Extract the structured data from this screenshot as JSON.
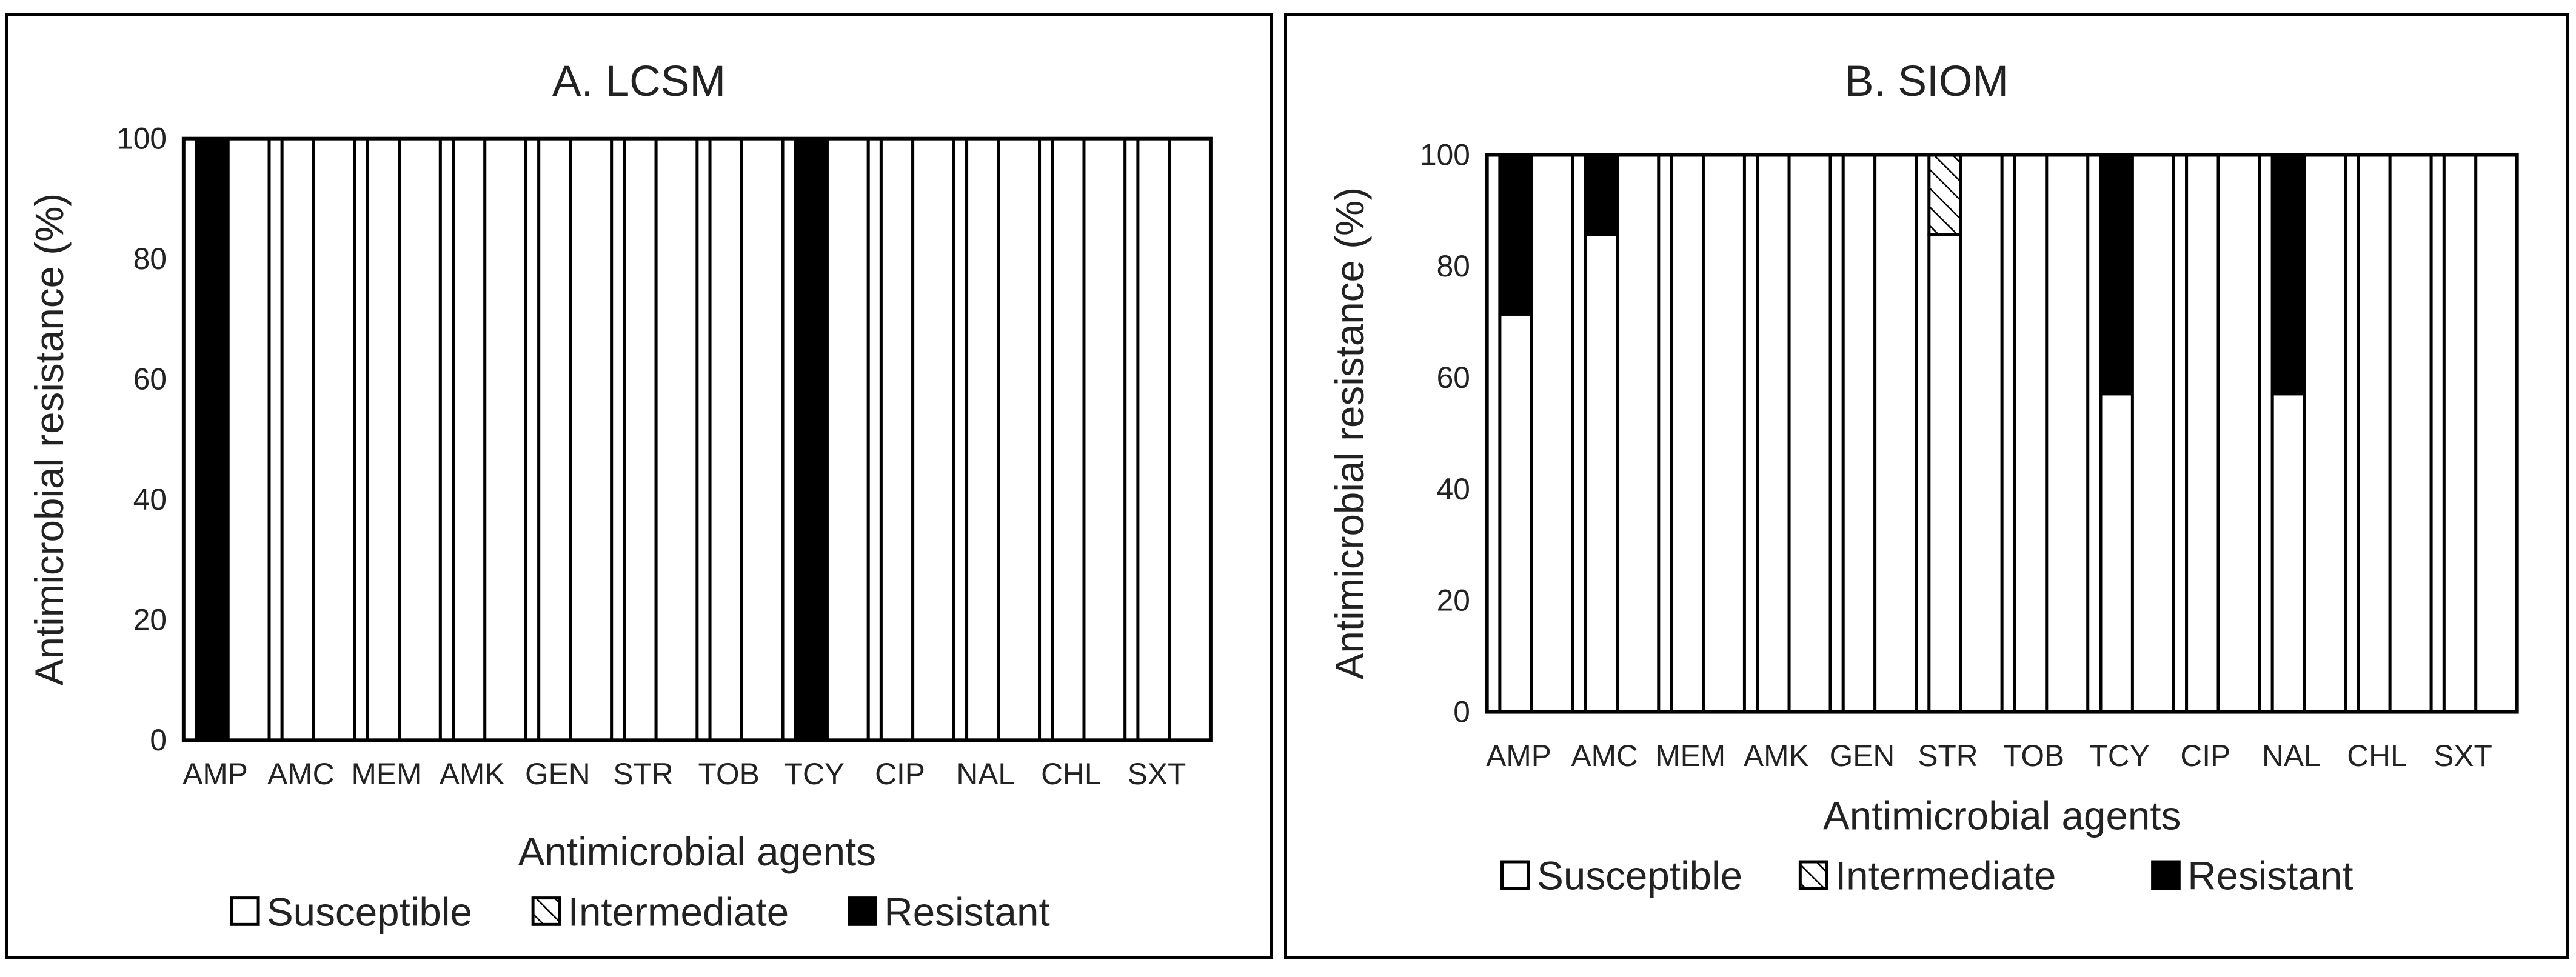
{
  "figure": {
    "legend": [
      "Susceptible",
      "Intermediate",
      "Resistant"
    ],
    "colors": {
      "susceptible": "#ffffff",
      "intermediate": "hatch",
      "resistant": "#000000",
      "stroke": "#000000"
    }
  },
  "chart_data": [
    {
      "type": "bar",
      "stacked": true,
      "title": "A. LCSM",
      "xlabel": "Antimicrobial agents",
      "ylabel": "Antimicrobial resistance (%)",
      "ylim": [
        0,
        100
      ],
      "yticks": [
        0,
        20,
        40,
        60,
        80,
        100
      ],
      "categories": [
        "AMP",
        "AMC",
        "MEM",
        "AMK",
        "GEN",
        "STR",
        "TOB",
        "TCY",
        "CIP",
        "NAL",
        "CHL",
        "SXT"
      ],
      "series": [
        {
          "name": "Susceptible",
          "values": [
            0,
            100,
            100,
            100,
            100,
            100,
            100,
            0,
            100,
            100,
            100,
            100
          ]
        },
        {
          "name": "Intermediate",
          "values": [
            0,
            0,
            0,
            0,
            0,
            0,
            0,
            0,
            0,
            0,
            0,
            0
          ]
        },
        {
          "name": "Resistant",
          "values": [
            100,
            0,
            0,
            0,
            0,
            0,
            0,
            100,
            0,
            0,
            0,
            0
          ]
        }
      ],
      "legend_position": "bottom"
    },
    {
      "type": "bar",
      "stacked": true,
      "title": "B. SIOM",
      "xlabel": "Antimicrobial agents",
      "ylabel": "Antimicrobial resistance (%)",
      "ylim": [
        0,
        100
      ],
      "yticks": [
        0,
        20,
        40,
        60,
        80,
        100
      ],
      "categories": [
        "AMP",
        "AMC",
        "MEM",
        "AMK",
        "GEN",
        "STR",
        "TOB",
        "TCY",
        "CIP",
        "NAL",
        "CHL",
        "SXT"
      ],
      "series": [
        {
          "name": "Susceptible",
          "values": [
            71.4,
            85.7,
            100,
            100,
            100,
            85.7,
            100,
            57.1,
            100,
            57.1,
            100,
            100
          ]
        },
        {
          "name": "Intermediate",
          "values": [
            0,
            0,
            0,
            0,
            0,
            14.3,
            0,
            0,
            0,
            0,
            0,
            0
          ]
        },
        {
          "name": "Resistant",
          "values": [
            28.6,
            14.3,
            0,
            0,
            0,
            0,
            0,
            42.9,
            0,
            42.9,
            0,
            0
          ]
        }
      ],
      "legend_position": "bottom"
    }
  ]
}
